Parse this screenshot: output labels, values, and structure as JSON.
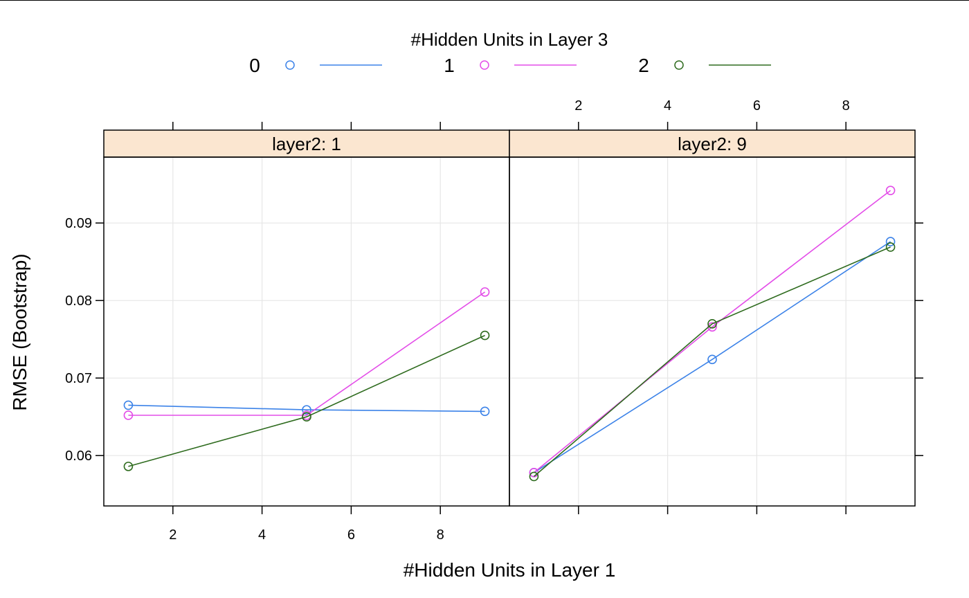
{
  "legend": {
    "title": "#Hidden Units in Layer 3",
    "entries": [
      {
        "label": "0",
        "color": "#3b82e8"
      },
      {
        "label": "1",
        "color": "#e34de8"
      },
      {
        "label": "2",
        "color": "#2e6b1e"
      }
    ]
  },
  "axes": {
    "xlabel": "#Hidden Units in Layer 1",
    "ylabel": "RMSE (Bootstrap)"
  },
  "chart_data": {
    "type": "line",
    "xlabel": "#Hidden Units in Layer 1",
    "ylabel": "RMSE (Bootstrap)",
    "legend_title": "#Hidden Units in Layer 3",
    "legend_position": "top",
    "xlim": [
      0.45,
      9.55
    ],
    "ylim": [
      0.0535,
      0.0985
    ],
    "x_ticks": [
      2,
      4,
      6,
      8
    ],
    "y_ticks": [
      0.06,
      0.07,
      0.08,
      0.09
    ],
    "y_tick_labels": [
      "0.06",
      "0.07",
      "0.08",
      "0.09"
    ],
    "grid": true,
    "x": [
      1,
      5,
      9
    ],
    "panels": [
      {
        "strip": "layer2: 1",
        "series": [
          {
            "name": "0",
            "color": "#3b82e8",
            "values": [
              0.0665,
              0.0659,
              0.0657
            ]
          },
          {
            "name": "1",
            "color": "#e34de8",
            "values": [
              0.0652,
              0.0652,
              0.0811
            ]
          },
          {
            "name": "2",
            "color": "#2e6b1e",
            "values": [
              0.0586,
              0.065,
              0.0755
            ]
          }
        ]
      },
      {
        "strip": "layer2: 9",
        "series": [
          {
            "name": "0",
            "color": "#3b82e8",
            "values": [
              0.0578,
              0.0724,
              0.0876
            ]
          },
          {
            "name": "1",
            "color": "#e34de8",
            "values": [
              0.0578,
              0.0766,
              0.0942
            ]
          },
          {
            "name": "2",
            "color": "#2e6b1e",
            "values": [
              0.0573,
              0.077,
              0.0869
            ]
          }
        ]
      }
    ]
  }
}
